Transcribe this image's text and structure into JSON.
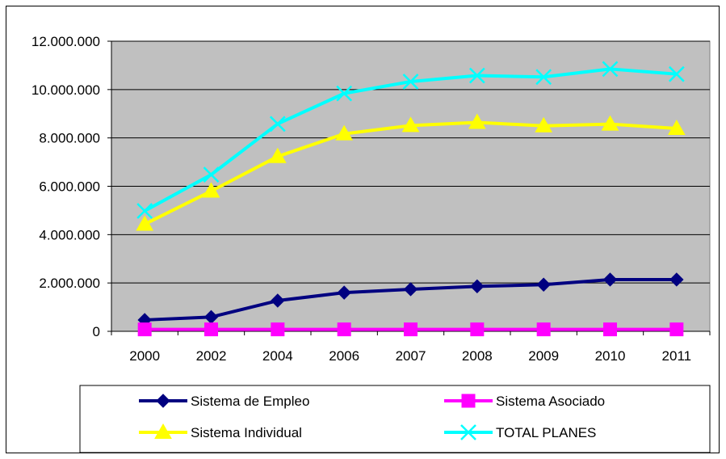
{
  "chart_data": {
    "type": "line",
    "categories": [
      "2000",
      "2002",
      "2004",
      "2006",
      "2007",
      "2008",
      "2009",
      "2010",
      "2011"
    ],
    "ylim": [
      0,
      12000000
    ],
    "yticks": [
      0,
      2000000,
      4000000,
      6000000,
      8000000,
      10000000,
      12000000
    ],
    "ytick_labels": [
      "0",
      "2.000.000",
      "4.000.000",
      "6.000.000",
      "8.000.000",
      "10.000.000",
      "12.000.000"
    ],
    "grid": true,
    "plot_background": "#C0C0C0",
    "legend_position": "bottom",
    "series": [
      {
        "name": "Sistema de Empleo",
        "color": "#000080",
        "marker": "diamond",
        "values": [
          470000,
          590000,
          1270000,
          1600000,
          1740000,
          1860000,
          1930000,
          2140000,
          2140000
        ]
      },
      {
        "name": "Sistema Asociado",
        "color": "#FF00FF",
        "marker": "square",
        "values": [
          80000,
          80000,
          80000,
          80000,
          80000,
          80000,
          80000,
          80000,
          80000
        ]
      },
      {
        "name": "Sistema Individual",
        "color": "#FFFF00",
        "marker": "triangle",
        "values": [
          4430000,
          5800000,
          7230000,
          8170000,
          8510000,
          8640000,
          8500000,
          8570000,
          8390000
        ]
      },
      {
        "name": "TOTAL PLANES",
        "color": "#00FFFF",
        "marker": "x",
        "values": [
          4980000,
          6480000,
          8580000,
          9840000,
          10330000,
          10580000,
          10520000,
          10850000,
          10640000
        ]
      }
    ]
  }
}
